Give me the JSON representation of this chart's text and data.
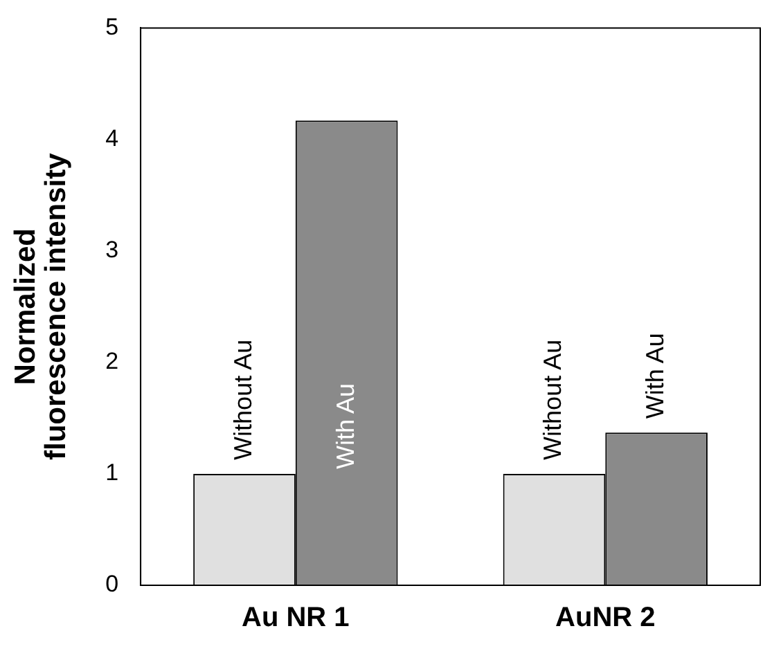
{
  "chart_data": {
    "type": "bar",
    "ylabel": "Normalized\nfluorescence intensity",
    "categories": [
      "Au NR 1",
      "AuNR 2"
    ],
    "series": [
      {
        "name": "Without Au",
        "color": "#e0e0e0",
        "values": [
          1,
          1.0
        ]
      },
      {
        "name": "With Au",
        "color": "#8a8a8a",
        "values": [
          4.17,
          1.37
        ]
      }
    ],
    "ylim": [
      0,
      5
    ],
    "yticks": [
      0,
      1,
      2,
      3,
      4,
      5
    ],
    "grid": false,
    "legend": false
  }
}
